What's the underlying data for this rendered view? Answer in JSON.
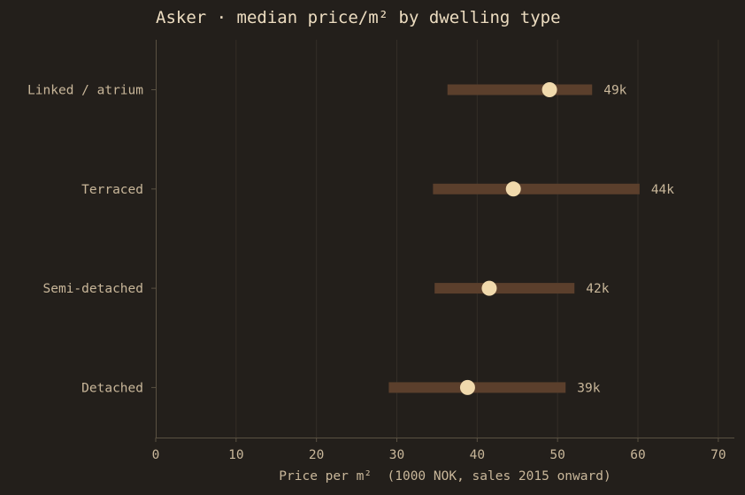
{
  "chart_data": {
    "type": "dot-range",
    "title": "Asker · median price/m² by dwelling type",
    "xlabel": "Price per m²  (1000 NOK, sales 2015 onward)",
    "ylabel": "",
    "xlim": [
      0,
      72
    ],
    "xticks": [
      0,
      10,
      20,
      30,
      40,
      50,
      60,
      70
    ],
    "grid": "vertical",
    "categories": [
      "Linked / atrium",
      "Terraced",
      "Semi-detached",
      "Detached"
    ],
    "series": [
      {
        "values": [
          49,
          44.5,
          41.5,
          38.8
        ],
        "range_low": [
          36.3,
          34.5,
          34.7,
          29
        ],
        "range_high": [
          54.3,
          60.2,
          52.1,
          51
        ],
        "labels": [
          "49k",
          "44k",
          "42k",
          "39k"
        ]
      }
    ],
    "colors": {
      "background": "#231f1b",
      "range_bar": "#5b3f2c",
      "point": "#f0d9ac",
      "text": "#c9b79a",
      "title": "#ecdcc0",
      "axis": "#5a5142",
      "grid": "#332e27"
    }
  }
}
